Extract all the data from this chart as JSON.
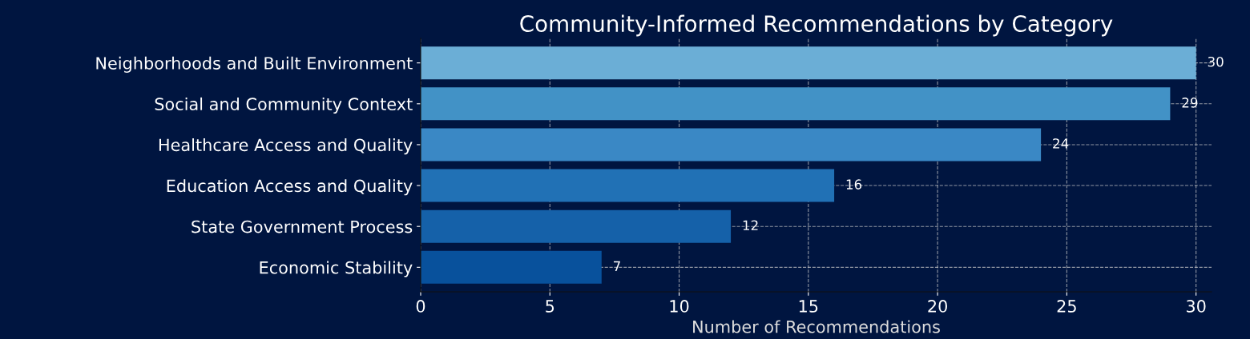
{
  "chart_data": {
    "type": "bar",
    "orientation": "horizontal",
    "title": "Community-Informed Recommendations by Category",
    "xlabel": "Number of Recommendations",
    "categories": [
      "Neighborhoods and Built Environment",
      "Social and Community Context",
      "Healthcare Access and Quality",
      "Education Access and Quality",
      "State Government Process",
      "Economic Stability"
    ],
    "values": [
      30,
      29,
      24,
      16,
      12,
      7
    ],
    "colors": [
      "#6baed6",
      "#4292c6",
      "#3a88c5",
      "#2171b5",
      "#1561a9",
      "#08519c"
    ],
    "xlim": [
      0,
      30.6
    ],
    "xticks": [
      0,
      5,
      10,
      15,
      20,
      25,
      30
    ],
    "grid": true,
    "data_labels": true
  }
}
